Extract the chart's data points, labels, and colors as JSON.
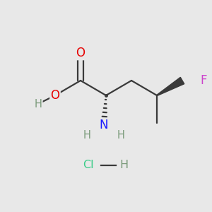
{
  "background_color": "#e8e8e8",
  "bond_color": "#3a3a3a",
  "O_color": "#e60000",
  "H_color": "#7a9a7a",
  "N_color": "#1a1aff",
  "F_color": "#cc44cc",
  "Cl_color": "#3acc88",
  "lw": 1.6,
  "fs": 10.5,
  "figsize": [
    3.0,
    3.0
  ],
  "dpi": 100,
  "xlim": [
    0,
    10
  ],
  "ylim": [
    0,
    10
  ]
}
